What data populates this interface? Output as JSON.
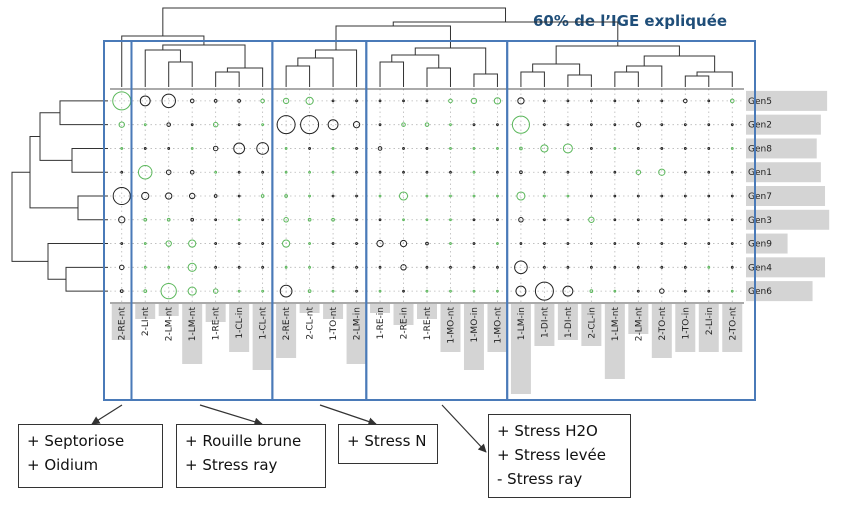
{
  "chart_data": {
    "type": "heatmap",
    "title": "60% de l’IGE expliquée",
    "genotypes": [
      "Gen5",
      "Gen2",
      "Gen8",
      "Gen1",
      "Gen7",
      "Gen3",
      "Gen9",
      "Gen4",
      "Gen6"
    ],
    "genotype_bar_values": [
      0.78,
      0.72,
      0.68,
      0.72,
      0.76,
      0.8,
      0.4,
      0.76,
      0.64
    ],
    "environments": [
      "2-RE-nt",
      "2-LI-nt",
      "2-LM-nt",
      "1-LM-nt",
      "1-RE-nt",
      "1-CL-in",
      "1-CL-nt",
      "2-RE-nt",
      "2-CL-nt",
      "1-TO-nt",
      "2-LM-in",
      "1-RE-in",
      "2-RE-in",
      "1-RE-nt",
      "1-MO-nt",
      "1-MO-in",
      "1-MO-nt",
      "1-LM-in",
      "1-DI-nt",
      "1-DI-nt",
      "2-CL-in",
      "1-LM-nt",
      "2-LM-nt",
      "2-TO-nt",
      "1-TO-in",
      "2-LI-in",
      "2-TO-nt"
    ],
    "environment_bar_values": [
      0.12,
      0.05,
      0.04,
      0.2,
      0.06,
      0.16,
      0.22,
      0.18,
      0.03,
      0.05,
      0.2,
      0.03,
      0.07,
      0.05,
      0.16,
      0.22,
      0.16,
      0.3,
      0.14,
      0.12,
      0.14,
      0.25,
      0.1,
      0.18,
      0.16,
      0.16,
      0.16
    ],
    "groups": [
      {
        "name": "+ Septoriose",
        "start": 0,
        "end": 1
      },
      {
        "name": "+ Rouille brune",
        "start": 1,
        "end": 7
      },
      {
        "name": "+ Stress N",
        "start": 7,
        "end": 11
      },
      {
        "name": "+ Stress H2O",
        "start": 11,
        "end": 17
      },
      {
        "name": "",
        "start": 17,
        "end": 27
      }
    ],
    "cell_values": [
      [
        1.0,
        0.55,
        0.75,
        0.2,
        0.15,
        0.15,
        0.2,
        0.3,
        0.4,
        0.1,
        0.05,
        0.05,
        0.05,
        0.05,
        0.2,
        0.3,
        0.35,
        0.35,
        0.1,
        0.05,
        0.05,
        0.1,
        0.05,
        0.05,
        0.2,
        0.1,
        0.2
      ],
      [
        0.3,
        0.05,
        0.2,
        0.05,
        0.25,
        0.1,
        0.1,
        1.0,
        1.0,
        0.55,
        0.35,
        0.1,
        0.2,
        0.2,
        0.1,
        0.1,
        0.05,
        0.95,
        0.1,
        0.05,
        0.05,
        0.05,
        0.25,
        0.05,
        0.05,
        0.1,
        0.1
      ],
      [
        0.1,
        0.05,
        0.05,
        0.05,
        0.25,
        0.6,
        0.65,
        0.1,
        0.05,
        0.05,
        0.05,
        0.2,
        0.05,
        0.05,
        0.1,
        0.05,
        0.1,
        0.15,
        0.4,
        0.5,
        0.1,
        0.05,
        0.05,
        0.05,
        0.05,
        0.05,
        0.05
      ],
      [
        0.05,
        0.75,
        0.25,
        0.2,
        0.1,
        0.05,
        0.05,
        0.05,
        0.1,
        0.1,
        0.05,
        0.1,
        0.05,
        0.05,
        0.05,
        0.1,
        0.1,
        0.15,
        0.05,
        0.05,
        0.05,
        0.1,
        0.25,
        0.35,
        0.05,
        0.05,
        0.05
      ],
      [
        0.95,
        0.4,
        0.35,
        0.3,
        0.15,
        0.05,
        0.15,
        0.15,
        0.1,
        0.05,
        0.1,
        0.1,
        0.45,
        0.1,
        0.1,
        0.1,
        0.05,
        0.45,
        0.1,
        0.1,
        0.05,
        0.05,
        0.05,
        0.05,
        0.05,
        0.05,
        0.05
      ],
      [
        0.35,
        0.15,
        0.15,
        0.15,
        0.1,
        0.1,
        0.1,
        0.25,
        0.15,
        0.15,
        0.1,
        0.05,
        0.1,
        0.05,
        0.1,
        0.1,
        0.1,
        0.25,
        0.1,
        0.05,
        0.3,
        0.05,
        0.05,
        0.05,
        0.05,
        0.05,
        0.05
      ],
      [
        0.05,
        0.1,
        0.3,
        0.4,
        0.05,
        0.05,
        0.05,
        0.4,
        0.1,
        0.05,
        0.05,
        0.35,
        0.35,
        0.15,
        0.05,
        0.05,
        0.05,
        0.1,
        0.1,
        0.1,
        0.05,
        0.05,
        0.05,
        0.05,
        0.05,
        0.05,
        0.05
      ],
      [
        0.25,
        0.05,
        0.1,
        0.45,
        0.05,
        0.05,
        0.05,
        0.1,
        0.05,
        0.05,
        0.05,
        0.1,
        0.3,
        0.05,
        0.05,
        0.05,
        0.05,
        0.7,
        0.1,
        0.05,
        0.05,
        0.05,
        0.05,
        0.05,
        0.05,
        0.1,
        0.05
      ],
      [
        0.15,
        0.15,
        0.85,
        0.45,
        0.25,
        0.1,
        0.1,
        0.65,
        0.15,
        0.1,
        0.1,
        0.1,
        0.1,
        0.1,
        0.1,
        0.05,
        0.05,
        0.55,
        1.0,
        0.55,
        0.15,
        0.05,
        0.05,
        0.25,
        0.1,
        0.1,
        0.1
      ]
    ],
    "cell_colors": [
      [
        "g",
        "k",
        "k",
        "k",
        "k",
        "k",
        "g",
        "g",
        "g",
        "k",
        "k",
        "k",
        "k",
        "k",
        "g",
        "g",
        "g",
        "k",
        "k",
        "k",
        "k",
        "k",
        "k",
        "k",
        "k",
        "k",
        "g"
      ],
      [
        "g",
        "g",
        "k",
        "k",
        "g",
        "k",
        "g",
        "k",
        "k",
        "k",
        "k",
        "k",
        "g",
        "g",
        "g",
        "k",
        "k",
        "g",
        "k",
        "k",
        "k",
        "k",
        "k",
        "k",
        "k",
        "k",
        "k"
      ],
      [
        "g",
        "k",
        "k",
        "g",
        "k",
        "k",
        "k",
        "g",
        "k",
        "g",
        "k",
        "k",
        "k",
        "k",
        "g",
        "g",
        "g",
        "g",
        "g",
        "g",
        "k",
        "g",
        "k",
        "k",
        "k",
        "k",
        "g"
      ],
      [
        "k",
        "g",
        "k",
        "k",
        "g",
        "k",
        "k",
        "g",
        "g",
        "g",
        "k",
        "k",
        "k",
        "k",
        "k",
        "g",
        "k",
        "k",
        "k",
        "k",
        "k",
        "k",
        "g",
        "g",
        "k",
        "k",
        "k"
      ],
      [
        "k",
        "k",
        "k",
        "k",
        "k",
        "k",
        "g",
        "g",
        "g",
        "k",
        "k",
        "g",
        "g",
        "g",
        "g",
        "g",
        "g",
        "g",
        "g",
        "g",
        "k",
        "k",
        "k",
        "k",
        "k",
        "k",
        "k"
      ],
      [
        "k",
        "g",
        "g",
        "k",
        "k",
        "g",
        "k",
        "g",
        "g",
        "g",
        "k",
        "k",
        "g",
        "g",
        "g",
        "k",
        "k",
        "k",
        "k",
        "k",
        "g",
        "k",
        "k",
        "k",
        "k",
        "k",
        "k"
      ],
      [
        "k",
        "g",
        "g",
        "g",
        "k",
        "k",
        "k",
        "g",
        "g",
        "k",
        "k",
        "k",
        "k",
        "k",
        "g",
        "k",
        "g",
        "k",
        "k",
        "k",
        "k",
        "k",
        "k",
        "k",
        "k",
        "k",
        "k"
      ],
      [
        "k",
        "g",
        "g",
        "g",
        "k",
        "k",
        "k",
        "g",
        "g",
        "k",
        "k",
        "k",
        "k",
        "k",
        "k",
        "k",
        "k",
        "k",
        "k",
        "k",
        "k",
        "k",
        "k",
        "k",
        "k",
        "g",
        "k"
      ],
      [
        "k",
        "g",
        "g",
        "g",
        "g",
        "g",
        "g",
        "k",
        "g",
        "g",
        "k",
        "g",
        "k",
        "g",
        "g",
        "g",
        "g",
        "k",
        "k",
        "k",
        "g",
        "g",
        "k",
        "k",
        "k",
        "k",
        "g"
      ]
    ],
    "legend": "none",
    "grid": true,
    "colors": {
      "positive": "#5cb85c",
      "negative": "#222222",
      "frame": "#4a7ab8",
      "bar": "#d4d4d4",
      "title": "#1f4e79"
    }
  },
  "annotations": [
    {
      "lines": [
        "+ Septoriose",
        "+ Oidium"
      ]
    },
    {
      "lines": [
        "+ Rouille brune",
        "+ Stress ray"
      ]
    },
    {
      "lines": [
        "+ Stress N"
      ]
    },
    {
      "lines": [
        "+ Stress H2O",
        "+ Stress levée",
        "- Stress ray"
      ]
    }
  ]
}
